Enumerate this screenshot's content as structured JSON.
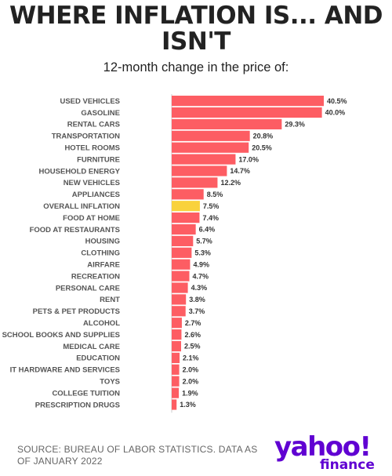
{
  "header": {
    "title": "WHERE INFLATION IS... AND ISN'T",
    "subtitle": "12-month change in the price of:"
  },
  "footer": {
    "source": "SOURCE: BUREAU OF LABOR STATISTICS. DATA AS OF JANUARY 2022",
    "logo_main": "yahoo!",
    "logo_sub": "finance"
  },
  "colors": {
    "bar": "#fd5d63",
    "highlight": "#f9d23c",
    "axis": "#cccccc"
  },
  "chart_data": {
    "type": "bar",
    "orientation": "horizontal",
    "title": "WHERE INFLATION IS... AND ISN'T",
    "subtitle": "12-month change in the price of:",
    "categories": [
      "USED VEHICLES",
      "GASOLINE",
      "RENTAL CARS",
      "TRANSPORTATION",
      "HOTEL ROOMS",
      "FURNITURE",
      "HOUSEHOLD ENERGY",
      "NEW VEHICLES",
      "APPLIANCES",
      "OVERALL INFLATION",
      "FOOD AT HOME",
      "FOOD AT RESTAURANTS",
      "HOUSING",
      "CLOTHING",
      "AIRFARE",
      "RECREATION",
      "PERSONAL CARE",
      "RENT",
      "PETS & PET PRODUCTS",
      "ALCOHOL",
      "SCHOOL BOOKS AND SUPPLIES",
      "MEDICAL CARE",
      "EDUCATION",
      "IT HARDWARE AND SERVICES",
      "TOYS",
      "COLLEGE TUITION",
      "PRESCRIPTION DRUGS"
    ],
    "values": [
      40.5,
      40.0,
      29.3,
      20.8,
      20.5,
      17.0,
      14.7,
      12.2,
      8.5,
      7.5,
      7.4,
      6.4,
      5.7,
      5.3,
      4.9,
      4.7,
      4.3,
      3.8,
      3.7,
      2.7,
      2.6,
      2.5,
      2.1,
      2.0,
      2.0,
      1.9,
      1.3
    ],
    "value_labels": [
      "40.5%",
      "40.0%",
      "29.3%",
      "20.8%",
      "20.5%",
      "17.0%",
      "14.7%",
      "12.2%",
      "8.5%",
      "7.5%",
      "7.4%",
      "6.4%",
      "5.7%",
      "5.3%",
      "4.9%",
      "4.7%",
      "4.3%",
      "3.8%",
      "3.7%",
      "2.7%",
      "2.6%",
      "2.5%",
      "2.1%",
      "2.0%",
      "2.0%",
      "1.9%",
      "1.3%"
    ],
    "highlight_category": "OVERALL INFLATION",
    "xlim": [
      0,
      40.5
    ],
    "grid": false,
    "legend": "none"
  }
}
